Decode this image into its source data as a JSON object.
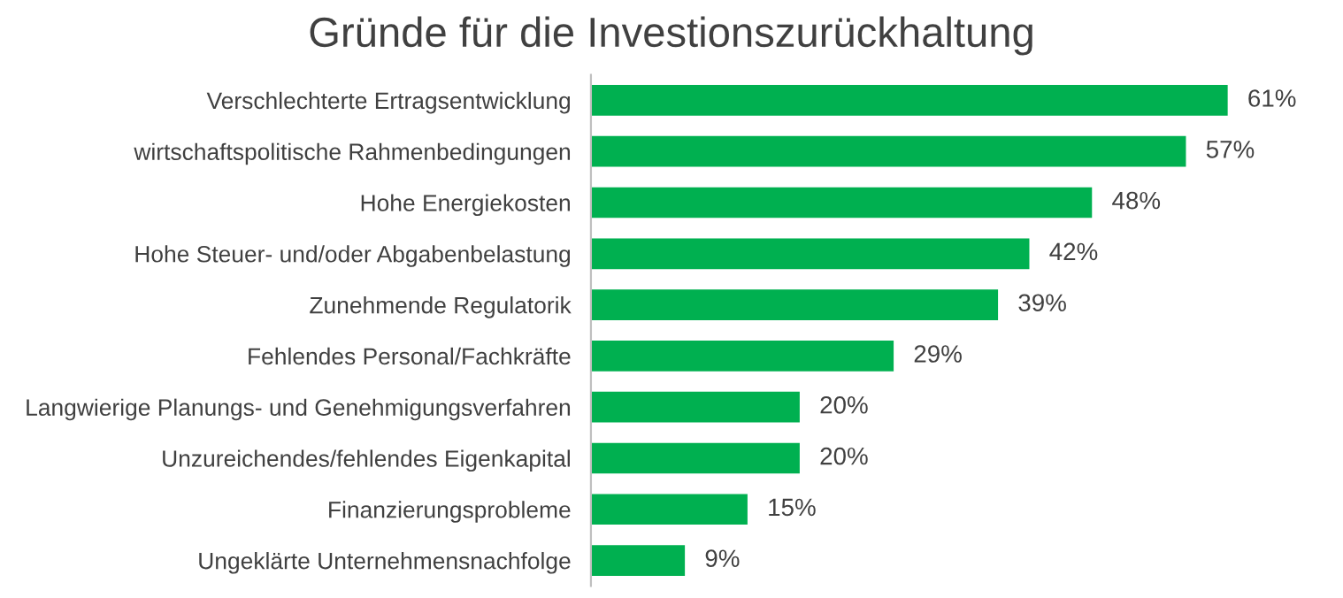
{
  "chart_data": {
    "type": "bar",
    "orientation": "horizontal",
    "title": "Gründe für die Investionszurückhaltung",
    "categories": [
      "Verschlechterte Ertragsentwicklung",
      "wirtschaftspolitische Rahmenbedingungen",
      "Hohe Energiekosten",
      "Hohe Steuer- und/oder Abgabenbelastung",
      "Zunehmende Regulatorik",
      "Fehlendes Personal/Fachkräfte",
      "Langwierige Planungs- und Genehmigungsverfahren",
      "Unzureichendes/fehlendes Eigenkapital",
      "Finanzierungsprobleme",
      "Ungeklärte Unternehmensnachfolge"
    ],
    "values": [
      61,
      57,
      48,
      42,
      39,
      29,
      20,
      20,
      15,
      9
    ],
    "value_labels": [
      "61%",
      "57%",
      "48%",
      "42%",
      "39%",
      "29%",
      "20%",
      "20%",
      "15%",
      "9%"
    ],
    "color": "#00b050",
    "grid": false,
    "legend": false
  }
}
